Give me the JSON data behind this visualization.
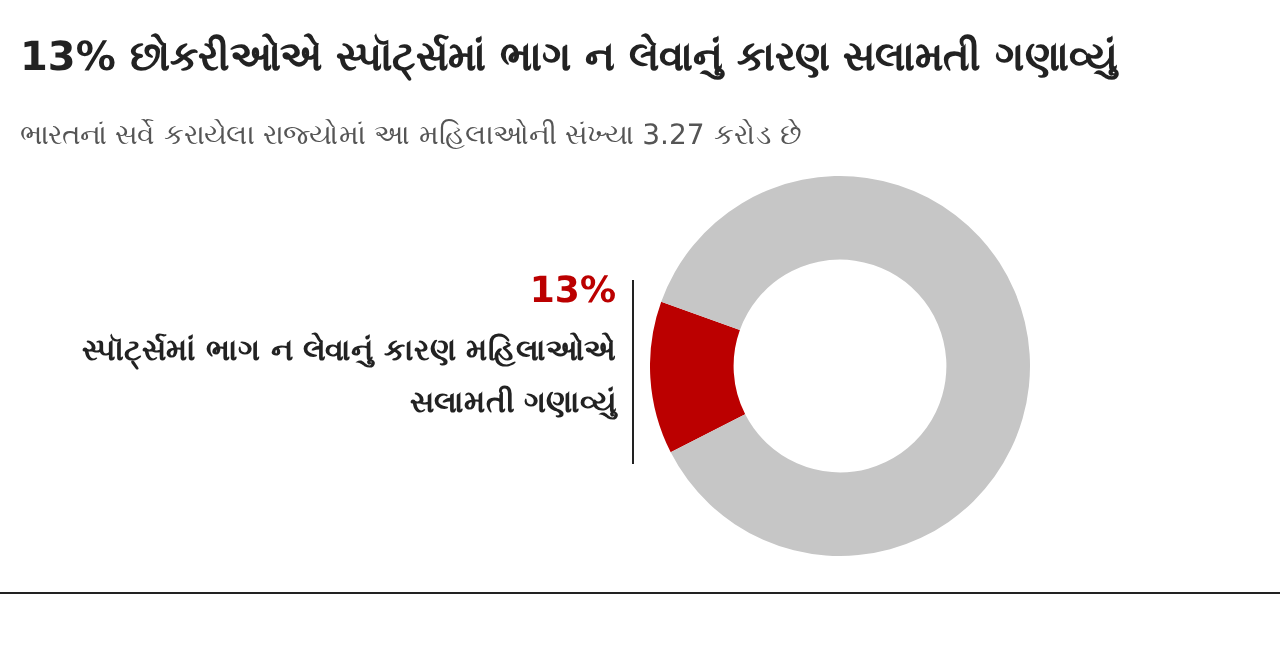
{
  "chart_data": {
    "type": "donut",
    "title": "13% છોકરીઓએ સ્પૉર્ટ્સમાં ભાગ ન લેવાનું કારણ સલામતી ગણાવ્યું",
    "subtitle": "ભારતનાં સર્વે કરાયેલા રાજ્યોમાં આ મહિલાઓની સંખ્યા 3.27 કરોડ છે",
    "categories": [
      "સ્પૉર્ટ્સમાં ભાગ ન લેવાનું કારણ મહિલાઓએ સલામતી ગણાવ્યું",
      null
    ],
    "values": [
      13,
      87
    ],
    "colors": [
      "#bb0000",
      "#c6c6c6"
    ],
    "value_labels": [
      "13%",
      null
    ],
    "legend": false
  }
}
